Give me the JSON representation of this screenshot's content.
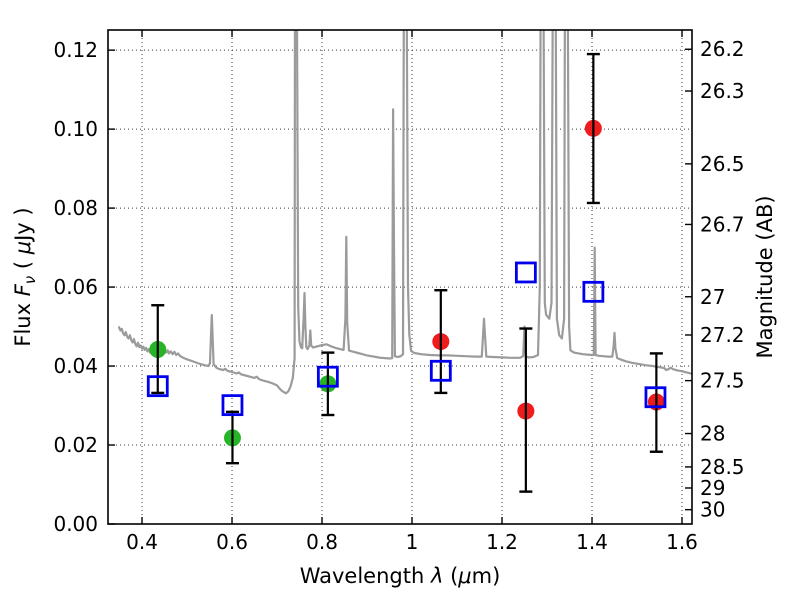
{
  "chart_data": {
    "type": "line+scatter",
    "description": "Galaxy SED model spectrum with photometric points and error bars, dual flux/magnitude axes",
    "xlabel_parts": {
      "p1": "Wavelength ",
      "lambda": "λ",
      "p2": " (",
      "mu": "μ",
      "p3": "m)"
    },
    "ylabel_left_parts": {
      "p1": "Flux ",
      "F": "F",
      "nu": "ν",
      "p2": " ( ",
      "mu": "μ",
      "p3": "Jy )"
    },
    "ylabel_right": "Magnitude (AB)",
    "xlim": [
      0.3244,
      1.6222
    ],
    "ylim": [
      0,
      0.1251
    ],
    "grid": "dotted",
    "legend": "none",
    "magnitude_zeropoint": 23.9,
    "x_ticks": {
      "values": [
        0.4,
        0.6,
        0.8,
        1.0,
        1.2,
        1.4,
        1.6
      ],
      "labels": [
        "0.4",
        "0.6",
        "0.8",
        "1",
        "1.2",
        "1.4",
        "1.6"
      ]
    },
    "y_ticks_left": {
      "values": [
        0.0,
        0.02,
        0.04,
        0.06,
        0.08,
        0.1,
        0.12
      ],
      "labels": [
        "0.00",
        "0.02",
        "0.04",
        "0.06",
        "0.08",
        "0.10",
        "0.12"
      ]
    },
    "y_ticks_right": {
      "values": [
        26.2,
        26.3,
        26.5,
        26.7,
        27.0,
        27.2,
        27.5,
        28.0,
        28.5,
        29.0,
        30.0
      ],
      "labels": [
        "26.2",
        "26.3",
        "26.5",
        "26.7",
        "27",
        "27.2",
        "27.5",
        "28",
        "28.5",
        "29",
        "30"
      ]
    },
    "colors": {
      "spectrum": "#9b9b9b",
      "green": "#28b428",
      "red": "#ee1c1c",
      "blue": "#0000ee",
      "errorbar": "#000000"
    },
    "series": [
      {
        "name": "green-circles",
        "marker": "circle",
        "color_key": "green",
        "points": [
          {
            "x": 0.435,
            "y": 0.0442,
            "lo": 0.0332,
            "hi": 0.0554
          },
          {
            "x": 0.601,
            "y": 0.0218,
            "lo": 0.0154,
            "hi": 0.0284
          },
          {
            "x": 0.813,
            "y": 0.0355,
            "lo": 0.0276,
            "hi": 0.0434
          }
        ]
      },
      {
        "name": "red-circles",
        "marker": "circle",
        "color_key": "red",
        "points": [
          {
            "x": 1.064,
            "y": 0.0462,
            "lo": 0.0332,
            "hi": 0.0592
          },
          {
            "x": 1.253,
            "y": 0.0286,
            "lo": 0.0082,
            "hi": 0.0495
          },
          {
            "x": 1.403,
            "y": 0.1002,
            "lo": 0.0813,
            "hi": 0.119
          },
          {
            "x": 1.543,
            "y": 0.0309,
            "lo": 0.0183,
            "hi": 0.0432
          }
        ]
      },
      {
        "name": "blue-open-squares",
        "marker": "square-open",
        "color_key": "blue",
        "points": [
          {
            "x": 0.435,
            "y": 0.0349
          },
          {
            "x": 0.601,
            "y": 0.0301
          },
          {
            "x": 0.813,
            "y": 0.0373
          },
          {
            "x": 1.064,
            "y": 0.0388
          },
          {
            "x": 1.253,
            "y": 0.0637
          },
          {
            "x": 1.403,
            "y": 0.0588
          },
          {
            "x": 1.541,
            "y": 0.0321
          }
        ]
      }
    ],
    "spectrum_points": [
      [
        0.349,
        0.0498
      ],
      [
        0.352,
        0.049
      ],
      [
        0.355,
        0.0494
      ],
      [
        0.358,
        0.0483
      ],
      [
        0.361,
        0.0478
      ],
      [
        0.364,
        0.0486
      ],
      [
        0.367,
        0.0474
      ],
      [
        0.37,
        0.047
      ],
      [
        0.373,
        0.0478
      ],
      [
        0.376,
        0.0466
      ],
      [
        0.379,
        0.046
      ],
      [
        0.382,
        0.0468
      ],
      [
        0.385,
        0.0456
      ],
      [
        0.388,
        0.045
      ],
      [
        0.391,
        0.0459
      ],
      [
        0.394,
        0.0448
      ],
      [
        0.397,
        0.0452
      ],
      [
        0.4,
        0.0444
      ],
      [
        0.403,
        0.0449
      ],
      [
        0.406,
        0.0441
      ],
      [
        0.409,
        0.0446
      ],
      [
        0.412,
        0.0437
      ],
      [
        0.415,
        0.0443
      ],
      [
        0.418,
        0.0434
      ],
      [
        0.421,
        0.044
      ],
      [
        0.424,
        0.0446
      ],
      [
        0.427,
        0.0435
      ],
      [
        0.43,
        0.0441
      ],
      [
        0.433,
        0.0446
      ],
      [
        0.436,
        0.0438
      ],
      [
        0.439,
        0.0444
      ],
      [
        0.442,
        0.0449
      ],
      [
        0.445,
        0.0438
      ],
      [
        0.448,
        0.0433
      ],
      [
        0.451,
        0.0439
      ],
      [
        0.454,
        0.0434
      ],
      [
        0.457,
        0.044
      ],
      [
        0.46,
        0.0432
      ],
      [
        0.464,
        0.0437
      ],
      [
        0.468,
        0.043
      ],
      [
        0.472,
        0.0436
      ],
      [
        0.476,
        0.0428
      ],
      [
        0.48,
        0.0432
      ],
      [
        0.485,
        0.0425
      ],
      [
        0.49,
        0.0422
      ],
      [
        0.495,
        0.0419
      ],
      [
        0.5,
        0.0417
      ],
      [
        0.51,
        0.0413
      ],
      [
        0.52,
        0.0409
      ],
      [
        0.53,
        0.0405
      ],
      [
        0.54,
        0.0402
      ],
      [
        0.548,
        0.04
      ],
      [
        0.551,
        0.0408
      ],
      [
        0.553,
        0.047
      ],
      [
        0.555,
        0.0529
      ],
      [
        0.557,
        0.0468
      ],
      [
        0.559,
        0.0405
      ],
      [
        0.565,
        0.0396
      ],
      [
        0.57,
        0.0393
      ],
      [
        0.58,
        0.039
      ],
      [
        0.585,
        0.0393
      ],
      [
        0.59,
        0.0388
      ],
      [
        0.6,
        0.0385
      ],
      [
        0.61,
        0.0381
      ],
      [
        0.615,
        0.0384
      ],
      [
        0.62,
        0.0379
      ],
      [
        0.63,
        0.0376
      ],
      [
        0.64,
        0.0373
      ],
      [
        0.65,
        0.037
      ],
      [
        0.655,
        0.0373
      ],
      [
        0.66,
        0.0367
      ],
      [
        0.67,
        0.0363
      ],
      [
        0.68,
        0.036
      ],
      [
        0.69,
        0.0356
      ],
      [
        0.7,
        0.0351
      ],
      [
        0.705,
        0.0344
      ],
      [
        0.71,
        0.0338
      ],
      [
        0.715,
        0.0334
      ],
      [
        0.72,
        0.0331
      ],
      [
        0.725,
        0.0336
      ],
      [
        0.73,
        0.0348
      ],
      [
        0.735,
        0.037
      ],
      [
        0.739,
        0.042
      ],
      [
        0.74,
        0.14
      ],
      [
        0.744,
        0.14
      ],
      [
        0.747,
        0.055
      ],
      [
        0.75,
        0.0462
      ],
      [
        0.753,
        0.0448
      ],
      [
        0.756,
        0.0445
      ],
      [
        0.759,
        0.052
      ],
      [
        0.761,
        0.0585
      ],
      [
        0.763,
        0.05
      ],
      [
        0.765,
        0.0448
      ],
      [
        0.768,
        0.0443
      ],
      [
        0.772,
        0.0452
      ],
      [
        0.774,
        0.049
      ],
      [
        0.776,
        0.0452
      ],
      [
        0.78,
        0.0447
      ],
      [
        0.79,
        0.045
      ],
      [
        0.8,
        0.0453
      ],
      [
        0.81,
        0.0455
      ],
      [
        0.82,
        0.045
      ],
      [
        0.83,
        0.0446
      ],
      [
        0.84,
        0.0443
      ],
      [
        0.848,
        0.0441
      ],
      [
        0.852,
        0.052
      ],
      [
        0.854,
        0.0727
      ],
      [
        0.856,
        0.051
      ],
      [
        0.86,
        0.0439
      ],
      [
        0.87,
        0.0436
      ],
      [
        0.88,
        0.0433
      ],
      [
        0.89,
        0.043
      ],
      [
        0.9,
        0.0427
      ],
      [
        0.91,
        0.0425
      ],
      [
        0.92,
        0.0423
      ],
      [
        0.93,
        0.0421
      ],
      [
        0.94,
        0.042
      ],
      [
        0.95,
        0.0419
      ],
      [
        0.956,
        0.042
      ],
      [
        0.958,
        0.105
      ],
      [
        0.96,
        0.07
      ],
      [
        0.962,
        0.0425
      ],
      [
        0.968,
        0.0423
      ],
      [
        0.975,
        0.0425
      ],
      [
        0.98,
        0.043
      ],
      [
        0.982,
        0.14
      ],
      [
        0.988,
        0.14
      ],
      [
        0.991,
        0.06
      ],
      [
        0.994,
        0.048
      ],
      [
        0.998,
        0.0438
      ],
      [
        1.005,
        0.0433
      ],
      [
        1.02,
        0.043
      ],
      [
        1.04,
        0.0428
      ],
      [
        1.06,
        0.0427
      ],
      [
        1.08,
        0.0427
      ],
      [
        1.1,
        0.0426
      ],
      [
        1.12,
        0.0425
      ],
      [
        1.14,
        0.0424
      ],
      [
        1.155,
        0.0424
      ],
      [
        1.16,
        0.052
      ],
      [
        1.165,
        0.0424
      ],
      [
        1.18,
        0.0423
      ],
      [
        1.2,
        0.0422
      ],
      [
        1.22,
        0.0421
      ],
      [
        1.24,
        0.0421
      ],
      [
        1.247,
        0.0425
      ],
      [
        1.25,
        0.05
      ],
      [
        1.253,
        0.0424
      ],
      [
        1.26,
        0.0422
      ],
      [
        1.27,
        0.0423
      ],
      [
        1.28,
        0.0428
      ],
      [
        1.284,
        0.06
      ],
      [
        1.286,
        0.14
      ],
      [
        1.292,
        0.14
      ],
      [
        1.295,
        0.056
      ],
      [
        1.298,
        0.053
      ],
      [
        1.305,
        0.052
      ],
      [
        1.31,
        0.056
      ],
      [
        1.313,
        0.14
      ],
      [
        1.319,
        0.14
      ],
      [
        1.322,
        0.052
      ],
      [
        1.327,
        0.0478
      ],
      [
        1.333,
        0.047
      ],
      [
        1.338,
        0.052
      ],
      [
        1.34,
        0.14
      ],
      [
        1.346,
        0.14
      ],
      [
        1.349,
        0.05
      ],
      [
        1.352,
        0.044
      ],
      [
        1.36,
        0.0434
      ],
      [
        1.37,
        0.0432
      ],
      [
        1.38,
        0.043
      ],
      [
        1.39,
        0.0429
      ],
      [
        1.4,
        0.0428
      ],
      [
        1.404,
        0.0428
      ],
      [
        1.406,
        0.07
      ],
      [
        1.408,
        0.0428
      ],
      [
        1.415,
        0.0426
      ],
      [
        1.425,
        0.0425
      ],
      [
        1.435,
        0.0424
      ],
      [
        1.445,
        0.0424
      ],
      [
        1.448,
        0.045
      ],
      [
        1.45,
        0.0484
      ],
      [
        1.452,
        0.0445
      ],
      [
        1.456,
        0.042
      ],
      [
        1.465,
        0.0416
      ],
      [
        1.475,
        0.0412
      ],
      [
        1.49,
        0.0408
      ],
      [
        1.505,
        0.0405
      ],
      [
        1.52,
        0.0402
      ],
      [
        1.535,
        0.04
      ],
      [
        1.55,
        0.0397
      ],
      [
        1.56,
        0.0395
      ],
      [
        1.565,
        0.039
      ],
      [
        1.57,
        0.0392
      ],
      [
        1.575,
        0.0396
      ],
      [
        1.58,
        0.0392
      ],
      [
        1.59,
        0.0389
      ],
      [
        1.6,
        0.0387
      ],
      [
        1.61,
        0.0384
      ],
      [
        1.62,
        0.0381
      ],
      [
        1.627,
        0.038
      ]
    ]
  }
}
